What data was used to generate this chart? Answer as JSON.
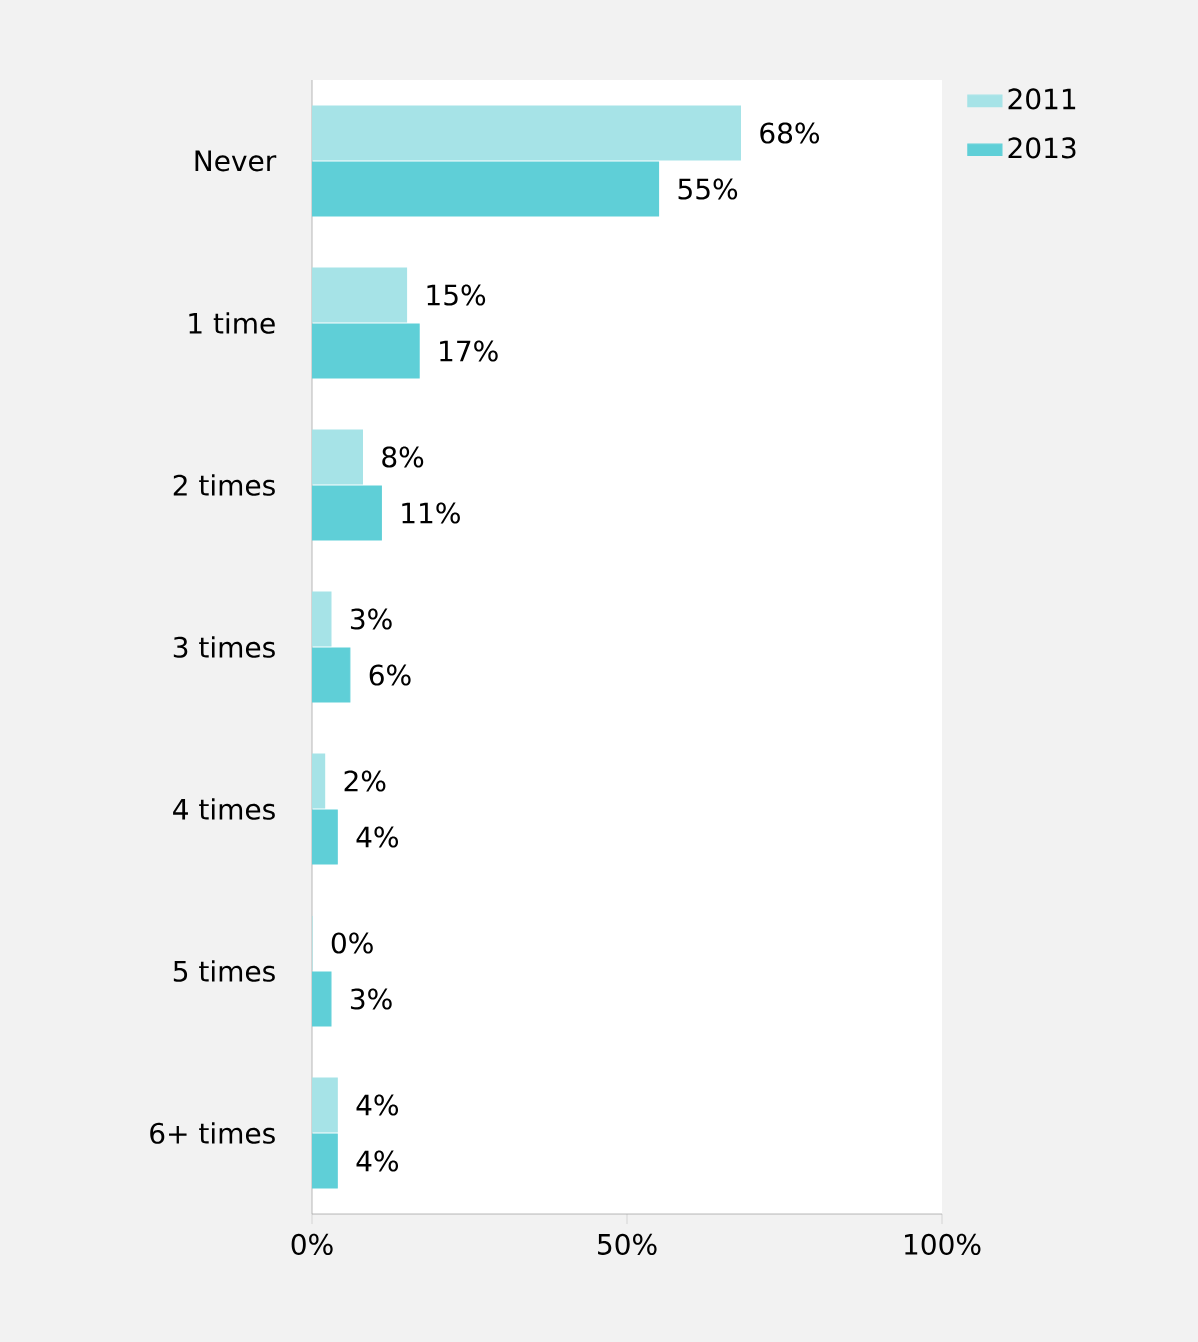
{
  "chart_data": {
    "type": "bar",
    "orientation": "horizontal",
    "categories": [
      "Never",
      "1 time",
      "2 times",
      "3 times",
      "4 times",
      "5 times",
      "6+ times"
    ],
    "series": [
      {
        "name": "2011",
        "color": "#a6e3e7",
        "values": [
          68,
          15,
          8,
          3,
          2,
          0,
          4
        ],
        "value_labels": [
          "68%",
          "15%",
          "8%",
          "3%",
          "2%",
          "0%",
          "4%"
        ]
      },
      {
        "name": "2013",
        "color": "#5fcfd7",
        "values": [
          55,
          17,
          11,
          6,
          4,
          3,
          4
        ],
        "value_labels": [
          "55%",
          "17%",
          "11%",
          "6%",
          "4%",
          "3%",
          "4%"
        ]
      }
    ],
    "xlim": [
      0,
      100
    ],
    "xticks": [
      {
        "value": 0,
        "label": "0%"
      },
      {
        "value": 50,
        "label": "50%"
      },
      {
        "value": 100,
        "label": "100%"
      }
    ],
    "legend": "top right",
    "grid": false
  }
}
